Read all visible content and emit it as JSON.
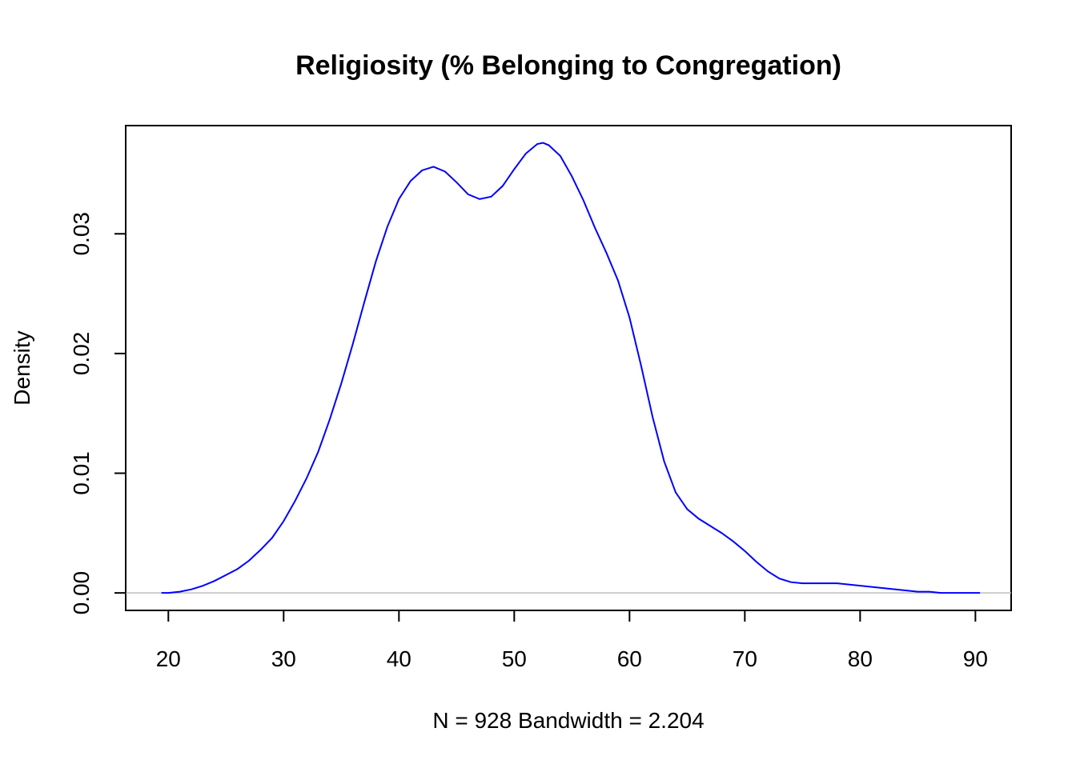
{
  "chart_data": {
    "type": "line",
    "title": "Religiosity (% Belonging to Congregation)",
    "xlabel": "N = 928   Bandwidth = 2.204",
    "ylabel": "Density",
    "xlim": [
      16.3,
      93.1
    ],
    "ylim": [
      -0.00146,
      0.03904
    ],
    "x_ticks": [
      20,
      30,
      40,
      50,
      60,
      70,
      80,
      90
    ],
    "x_tick_labels": [
      "20",
      "30",
      "40",
      "50",
      "60",
      "70",
      "80",
      "90"
    ],
    "y_ticks": [
      0,
      0.01,
      0.02,
      0.03
    ],
    "y_tick_labels": [
      "0.00",
      "0.01",
      "0.02",
      "0.03"
    ],
    "grid": false,
    "baseline": 0,
    "line_color": "#0000ff",
    "baseline_color": "#bebebe",
    "series": [
      {
        "x": [
          19.4,
          20.0,
          21.0,
          22.0,
          23.0,
          24.0,
          25.0,
          26.0,
          27.0,
          28.0,
          29.0,
          30.0,
          31.0,
          32.0,
          33.0,
          34.0,
          35.0,
          36.0,
          37.0,
          38.0,
          39.0,
          40.0,
          41.0,
          42.0,
          43.0,
          44.0,
          45.0,
          46.0,
          47.0,
          48.0,
          49.0,
          50.0,
          51.0,
          52.0,
          52.5,
          53.0,
          54.0,
          55.0,
          56.0,
          57.0,
          58.0,
          59.0,
          60.0,
          61.0,
          62.0,
          63.0,
          64.0,
          65.0,
          66.0,
          67.0,
          68.0,
          69.0,
          70.0,
          71.0,
          72.0,
          73.0,
          74.0,
          75.0,
          76.0,
          77.0,
          78.0,
          79.0,
          80.0,
          81.0,
          82.0,
          83.0,
          84.0,
          85.0,
          86.0,
          87.0,
          88.0,
          89.0,
          90.4
        ],
        "y": [
          0.0,
          0.0,
          0.0001,
          0.0003,
          0.0006,
          0.001,
          0.0015,
          0.002,
          0.0027,
          0.0036,
          0.0046,
          0.006,
          0.0077,
          0.0096,
          0.0118,
          0.0145,
          0.0175,
          0.0208,
          0.0243,
          0.0277,
          0.0306,
          0.0329,
          0.0344,
          0.0353,
          0.0356,
          0.0352,
          0.0343,
          0.0333,
          0.0329,
          0.0331,
          0.034,
          0.0354,
          0.0367,
          0.0375,
          0.0376,
          0.0374,
          0.0365,
          0.0348,
          0.0328,
          0.0305,
          0.0284,
          0.0261,
          0.023,
          0.019,
          0.0147,
          0.011,
          0.0084,
          0.007,
          0.0062,
          0.0056,
          0.005,
          0.0043,
          0.0035,
          0.0026,
          0.0018,
          0.0012,
          0.0009,
          0.0008,
          0.0008,
          0.0008,
          0.0008,
          0.0007,
          0.0006,
          0.0005,
          0.0004,
          0.0003,
          0.0002,
          0.0001,
          0.0001,
          0.0,
          0.0,
          0.0,
          0.0
        ]
      }
    ]
  }
}
